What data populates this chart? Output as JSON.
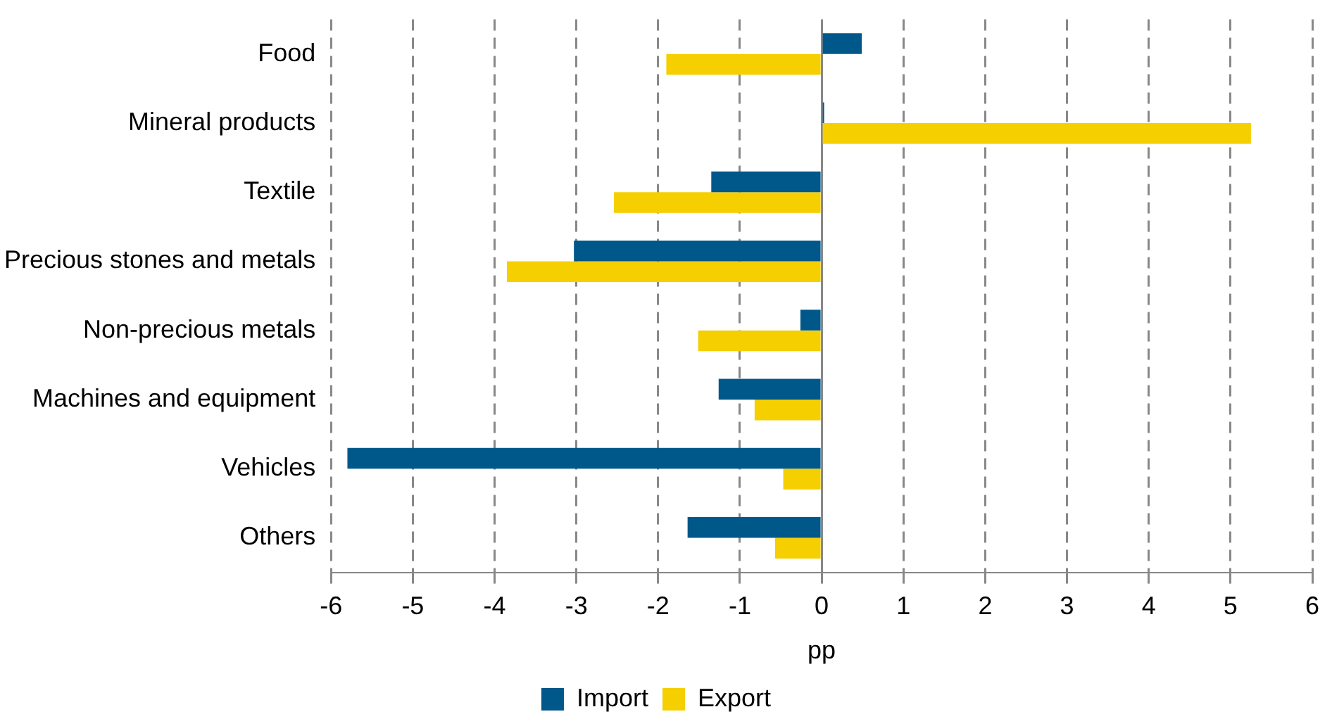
{
  "chart_data": {
    "type": "bar",
    "orientation": "horizontal",
    "xlabel": "pp",
    "categories": [
      "Food",
      "Mineral products",
      "Textile",
      "Precious stones and metals",
      "Non-precious metals",
      "Machines and equipment",
      "Vehicles",
      "Others"
    ],
    "series": [
      {
        "name": "Import",
        "color": "#00578a",
        "values": [
          0.49,
          0.03,
          -1.35,
          -3.03,
          -0.26,
          -1.26,
          -5.8,
          -1.64
        ]
      },
      {
        "name": "Export",
        "color": "#f5cf00",
        "values": [
          -1.9,
          5.25,
          -2.54,
          -3.85,
          -1.51,
          -0.82,
          -0.47,
          -0.57
        ]
      }
    ],
    "xlim": [
      -6,
      6
    ],
    "xticks": [
      -6,
      -5,
      -4,
      -3,
      -2,
      -1,
      0,
      1,
      2,
      3,
      4,
      5,
      6
    ],
    "grid": "x",
    "legend": "bottom"
  }
}
